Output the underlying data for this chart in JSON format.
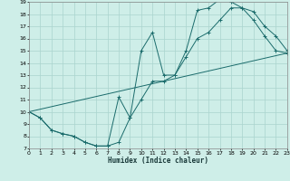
{
  "xlabel": "Humidex (Indice chaleur)",
  "bg_color": "#ceeee8",
  "line_color": "#1a6b6b",
  "grid_color": "#aad4ce",
  "xlim": [
    0,
    23
  ],
  "ylim": [
    7,
    19
  ],
  "xticks": [
    0,
    1,
    2,
    3,
    4,
    5,
    6,
    7,
    8,
    9,
    10,
    11,
    12,
    13,
    14,
    15,
    16,
    17,
    18,
    19,
    20,
    21,
    22,
    23
  ],
  "yticks": [
    7,
    8,
    9,
    10,
    11,
    12,
    13,
    14,
    15,
    16,
    17,
    18,
    19
  ],
  "line1_x": [
    0,
    1,
    2,
    3,
    4,
    5,
    6,
    7,
    8,
    9,
    10,
    11,
    12,
    13,
    14,
    15,
    16,
    17,
    18,
    19,
    20,
    21,
    22,
    23
  ],
  "line1_y": [
    10,
    9.5,
    8.5,
    8.2,
    8.0,
    7.5,
    7.2,
    7.2,
    11.2,
    9.5,
    15.0,
    16.5,
    13.0,
    13.0,
    15.0,
    18.3,
    18.5,
    19.2,
    19.0,
    18.5,
    18.2,
    17.0,
    16.2,
    15.0
  ],
  "line2_x": [
    0,
    1,
    2,
    3,
    4,
    5,
    6,
    7,
    8,
    9,
    10,
    11,
    12,
    13,
    14,
    15,
    16,
    17,
    18,
    19,
    20,
    21,
    22,
    23
  ],
  "line2_y": [
    10,
    9.5,
    8.5,
    8.2,
    8.0,
    7.5,
    7.2,
    7.2,
    7.5,
    9.5,
    11.0,
    12.5,
    12.5,
    13.0,
    14.5,
    16.0,
    16.5,
    17.5,
    18.5,
    18.5,
    17.5,
    16.2,
    15.0,
    14.8
  ],
  "line3_x": [
    0,
    23
  ],
  "line3_y": [
    10,
    14.8
  ]
}
